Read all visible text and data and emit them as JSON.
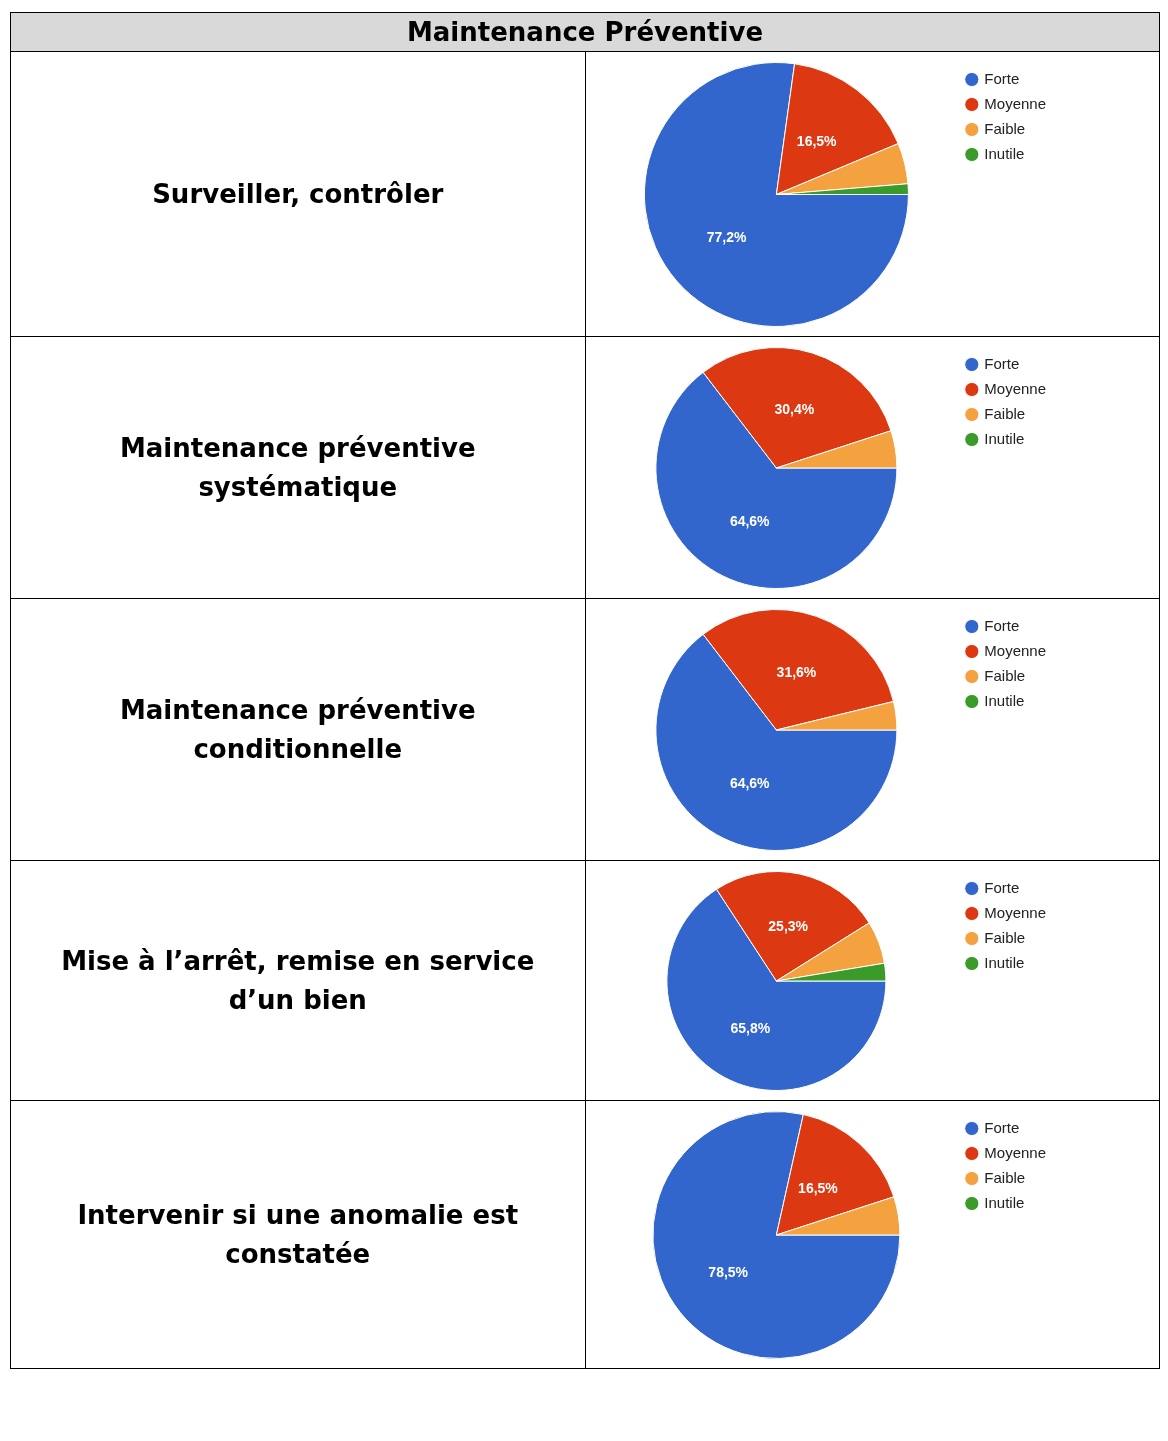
{
  "chart_data": [
    {
      "type": "pie",
      "title": "Surveiller, contrôler",
      "annotations": [
        "Maintenance Préventive"
      ],
      "categories": [
        "Forte",
        "Moyenne",
        "Faible",
        "Inutile"
      ],
      "values": [
        77.2,
        16.5,
        5.0,
        1.3
      ],
      "colors": [
        "#3366cc",
        "#dc3912",
        "#f4a140",
        "#3a9a2a"
      ],
      "value_labels": [
        "77,2%",
        "16,5%",
        null,
        null
      ],
      "legend": "right"
    },
    {
      "type": "pie",
      "title": "Maintenance préventive systématique",
      "categories": [
        "Forte",
        "Moyenne",
        "Faible",
        "Inutile"
      ],
      "values": [
        64.6,
        30.4,
        5.0,
        0
      ],
      "colors": [
        "#3366cc",
        "#dc3912",
        "#f4a140",
        "#3a9a2a"
      ],
      "value_labels": [
        "64,6%",
        "30,4%",
        null,
        null
      ],
      "legend": "right"
    },
    {
      "type": "pie",
      "title": "Maintenance préventive conditionnelle",
      "categories": [
        "Forte",
        "Moyenne",
        "Faible",
        "Inutile"
      ],
      "values": [
        64.6,
        31.6,
        3.8,
        0
      ],
      "colors": [
        "#3366cc",
        "#dc3912",
        "#f4a140",
        "#3a9a2a"
      ],
      "value_labels": [
        "64,6%",
        "31,6%",
        null,
        null
      ],
      "legend": "right"
    },
    {
      "type": "pie",
      "title": "Mise à l’arrêt, remise en service d’un bien",
      "categories": [
        "Forte",
        "Moyenne",
        "Faible",
        "Inutile"
      ],
      "values": [
        65.8,
        25.3,
        6.3,
        2.6
      ],
      "colors": [
        "#3366cc",
        "#dc3912",
        "#f4a140",
        "#3a9a2a"
      ],
      "value_labels": [
        "65,8%",
        "25,3%",
        null,
        null
      ],
      "legend": "right"
    },
    {
      "type": "pie",
      "title": "Intervenir si une anomalie est constatée",
      "categories": [
        "Forte",
        "Moyenne",
        "Faible",
        "Inutile"
      ],
      "values": [
        78.5,
        16.5,
        5.0,
        0
      ],
      "colors": [
        "#3366cc",
        "#dc3912",
        "#f4a140",
        "#3a9a2a"
      ],
      "value_labels": [
        "78,5%",
        "16,5%",
        null,
        null
      ],
      "legend": "right"
    }
  ]
}
